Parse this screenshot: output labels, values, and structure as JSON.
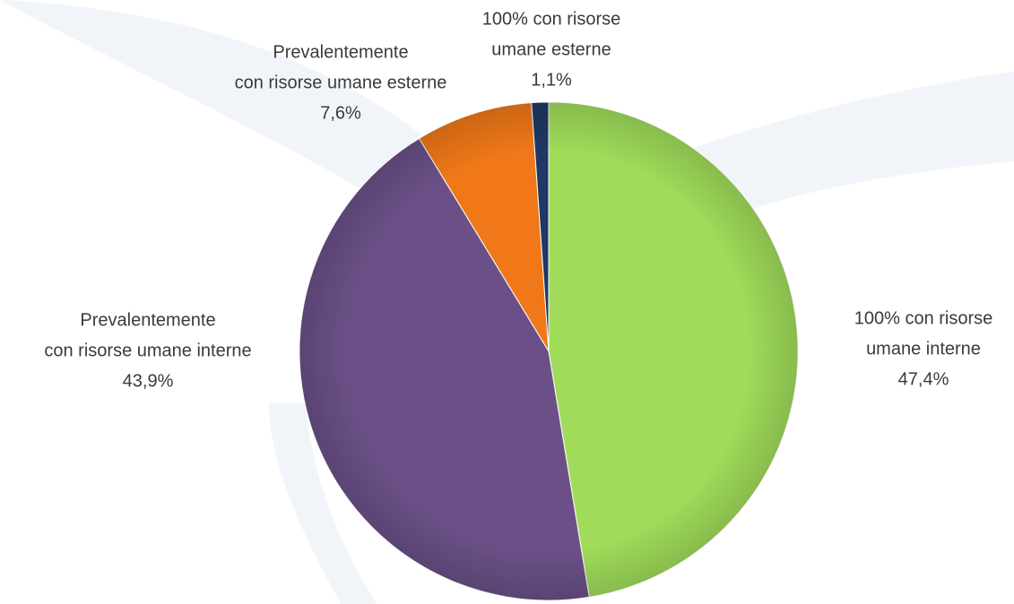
{
  "chart_data": {
    "type": "pie",
    "categories": [
      [
        "100% con risorse",
        "umane interne"
      ],
      [
        "Prevalentemente",
        "con risorse umane interne"
      ],
      [
        "Prevalentemente",
        "con risorse umane esterne"
      ],
      [
        "100% con risorse",
        "umane esterne"
      ]
    ],
    "values": [
      47.4,
      43.9,
      7.6,
      1.1
    ],
    "value_labels": [
      "47,4%",
      "43,9%",
      "7,6%",
      "1,1%"
    ],
    "colors": [
      "#a0dc5a",
      "#6a5087",
      "#f07818",
      "#1f3864"
    ]
  }
}
